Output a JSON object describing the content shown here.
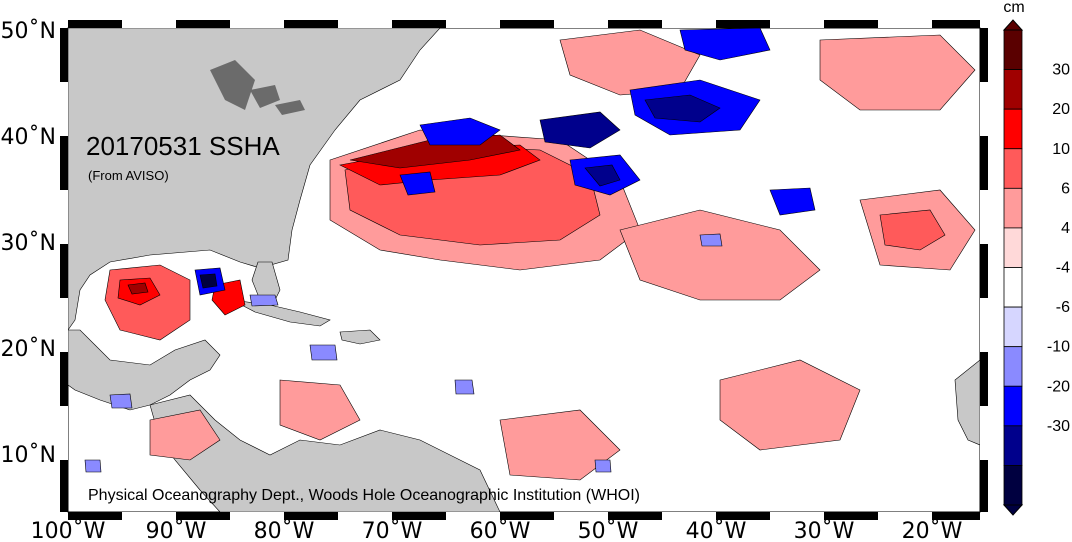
{
  "map": {
    "title": "20170531 SSHA",
    "subtitle": "(From AVISO)",
    "credit": "Physical Oceanography Dept., Woods Hole Oceanographic Institution (WHOI)",
    "lat_labels": [
      "50˚N",
      "40˚N",
      "30˚N",
      "20˚N",
      "10˚N"
    ],
    "lon_labels": [
      "100˚W",
      "90˚W",
      "80˚W",
      "70˚W",
      "60˚W",
      "50˚W",
      "40˚W",
      "30˚W",
      "20˚W"
    ],
    "colors": {
      "land": "#c8c8c8",
      "ocean_neutral": "#ffffff"
    }
  },
  "colorbar": {
    "unit": "cm",
    "labels": [
      "30",
      "20",
      "10",
      "6",
      "4",
      "-4",
      "-6",
      "-10",
      "-20",
      "-30"
    ],
    "colors": [
      "#5a0000",
      "#a00000",
      "#ff0000",
      "#ff5a5a",
      "#ff9b9b",
      "#ffd9d9",
      "#ffffff",
      "#d6d6ff",
      "#8a8aff",
      "#0000ff",
      "#00008c",
      "#000040"
    ]
  }
}
